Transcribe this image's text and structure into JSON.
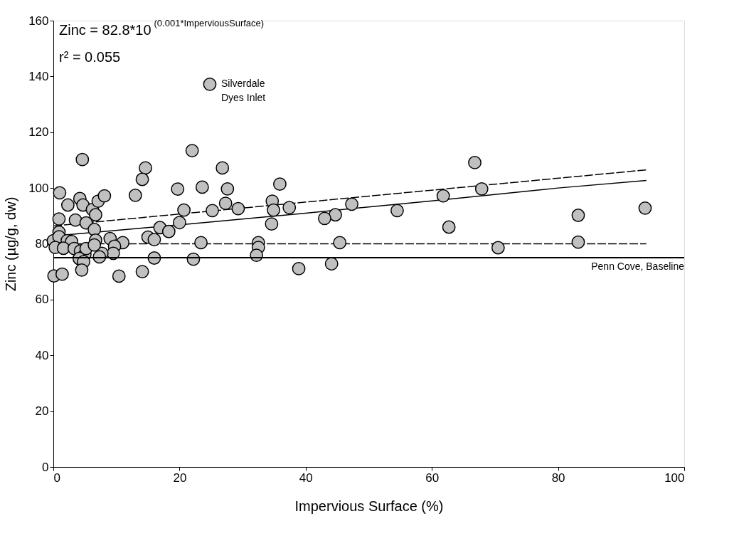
{
  "chart_data": {
    "type": "scatter",
    "xlabel": "Impervious Surface (%)",
    "ylabel": "Zinc (µg/g, dw)",
    "xlim": [
      0,
      100
    ],
    "ylim": [
      0,
      160
    ],
    "xticks": [
      0,
      20,
      40,
      60,
      80,
      100
    ],
    "yticks": [
      0,
      20,
      40,
      60,
      80,
      100,
      120,
      140,
      160
    ],
    "grid": false,
    "series": [
      {
        "marker": "circle",
        "color": "#c0c0c0",
        "x": [
          4.6,
          1.0,
          2.3,
          4.2,
          4.7,
          6.2,
          7.1,
          8.1,
          6.7,
          0.9,
          3.5,
          5.2,
          6.5,
          0.9,
          0,
          0.9,
          2.2,
          2.9,
          6.7,
          9.0,
          11.0,
          9.7,
          9.5,
          7.7,
          7.3,
          0.3,
          1.6,
          3.3,
          4.3,
          5.0,
          5.2,
          4.1,
          4.8,
          4.5,
          0.1,
          1.4,
          10.4,
          6.5,
          13.0,
          14.6,
          14.1,
          22.0,
          26.8,
          19.7,
          23.6,
          27.6,
          35.9,
          27.3,
          25.2,
          29.3,
          20.7,
          34.7,
          34.9,
          37.4,
          47.3,
          44.7,
          43.0,
          34.6,
          20.0,
          16.9,
          18.3,
          15.0,
          16.0,
          23.4,
          32.5,
          32.5,
          32.2,
          45.4,
          16.0,
          22.2,
          38.9,
          44.1,
          14.1,
          66.8,
          67.9,
          61.8,
          54.5,
          62.7,
          70.5,
          83.2,
          83.2,
          93.8,
          24.8
        ],
        "values": [
          110.2,
          98.3,
          93.9,
          96.2,
          93.9,
          92.3,
          95.3,
          97.2,
          90.4,
          88.9,
          88.5,
          87.5,
          85.1,
          84.2,
          81.1,
          82.5,
          81.1,
          80.8,
          81.3,
          81.9,
          80.4,
          79.1,
          76.6,
          76.6,
          75.3,
          78.7,
          78.4,
          78.3,
          77.4,
          76.2,
          78.3,
          74.7,
          73.6,
          70.6,
          68.5,
          69.1,
          68.4,
          79.6,
          97.4,
          107.2,
          103.1,
          113.4,
          107.2,
          99.6,
          100.3,
          99.7,
          101.4,
          94.5,
          91.9,
          92.6,
          92.1,
          95.3,
          92.1,
          93.0,
          94.2,
          90.4,
          89.1,
          87.1,
          87.6,
          85.8,
          84.4,
          82.4,
          81.5,
          80.4,
          80.4,
          78.7,
          75.9,
          80.4,
          74.9,
          74.5,
          71.1,
          72.8,
          70.0,
          109.1,
          99.7,
          97.2,
          91.9,
          86.0,
          78.6,
          90.2,
          80.6,
          92.8,
          137.2
        ]
      },
      {
        "type": "line",
        "marker": "none",
        "color": "#000000",
        "line_style": "solid",
        "x": [
          0,
          20,
          40,
          60,
          80,
          94
        ],
        "values": [
          82.8,
          86.8,
          91.0,
          95.4,
          100.0,
          102.7
        ]
      },
      {
        "type": "line",
        "marker": "none",
        "color": "#000000",
        "line_style": "dashed",
        "x": [
          0,
          94
        ],
        "values": [
          86.4,
          106.5
        ]
      },
      {
        "type": "line",
        "marker": "none",
        "color": "#000000",
        "line_style": "dashed",
        "x": [
          0,
          94
        ],
        "values": [
          80,
          80
        ]
      }
    ],
    "ref_lines": [
      {
        "axis": "y",
        "value": 75,
        "label": "Penn Cove, Baseline",
        "color": "#000000",
        "line_style": "solid"
      }
    ],
    "annotations": [
      "Zinc = 82.8*10$^{(0.001*ImperviousSurface)}$",
      "r² = 0.055",
      {
        "text": "Silverdale\nDyes Inlet",
        "x": 24.8,
        "y": 137.2
      }
    ]
  }
}
